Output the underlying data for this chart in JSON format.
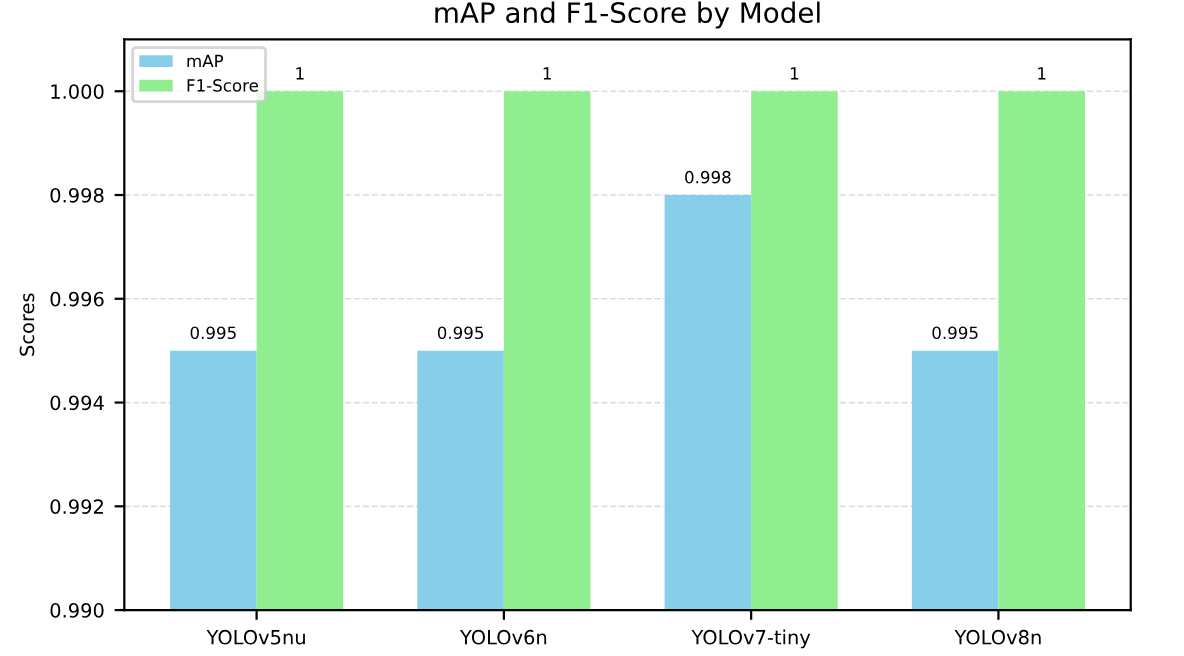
{
  "chart_data": {
    "type": "bar",
    "title": "mAP and F1-Score by Model",
    "ylabel": "Scores",
    "categories": [
      "YOLOv5nu",
      "YOLOv6n",
      "YOLOv7-tiny",
      "YOLOv8n"
    ],
    "series": [
      {
        "name": "mAP",
        "color": "#87ceeb",
        "values": [
          0.995,
          0.995,
          0.998,
          0.995
        ]
      },
      {
        "name": "F1-Score",
        "color": "#90ee90",
        "values": [
          1,
          1,
          1,
          1
        ]
      }
    ],
    "ylim": [
      0.99,
      1.001
    ],
    "yticks": [
      {
        "value": 0.99,
        "label": "0.990"
      },
      0.992,
      0.994,
      0.996,
      0.998,
      {
        "value": 1.0,
        "label": "1.000"
      }
    ],
    "grid": "y",
    "legend": "top left",
    "data_labels": true
  }
}
